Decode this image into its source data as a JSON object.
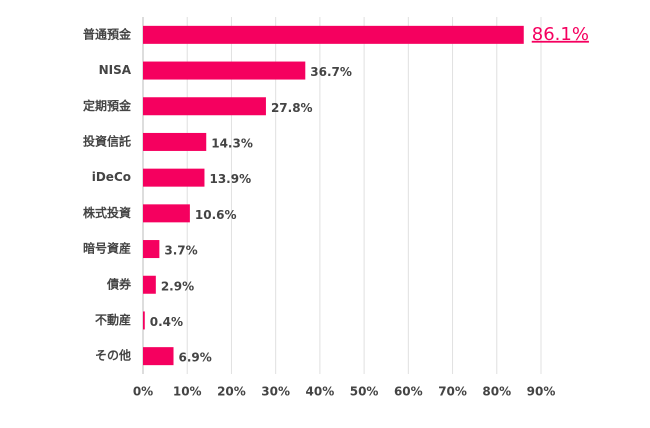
{
  "chart_data": {
    "type": "bar",
    "orientation": "horizontal",
    "categories": [
      "普通預金",
      "NISA",
      "定期預金",
      "投資信託",
      "iDeCo",
      "株式投資",
      "暗号資産",
      "債券",
      "不動産",
      "その他"
    ],
    "values": [
      86.1,
      36.7,
      27.8,
      14.3,
      13.9,
      10.6,
      3.7,
      2.9,
      0.4,
      6.9
    ],
    "value_labels": [
      "86.1%",
      "36.7%",
      "27.8%",
      "14.3%",
      "13.9%",
      "10.6%",
      "3.7%",
      "2.9%",
      "0.4%",
      "6.9%"
    ],
    "color": "#f5005f",
    "xlim": [
      0,
      90
    ],
    "xticks": [
      {
        "value": 0,
        "label": "0%"
      },
      {
        "value": 10,
        "label": "10%"
      },
      {
        "value": 20,
        "label": "20%"
      },
      {
        "value": 30,
        "label": "30%"
      },
      {
        "value": 40,
        "label": "40%"
      },
      {
        "value": 50,
        "label": "50%"
      },
      {
        "value": 60,
        "label": "60%"
      },
      {
        "value": 70,
        "label": "70%"
      },
      {
        "value": 80,
        "label": "80%"
      },
      {
        "value": 90,
        "label": "90%"
      }
    ],
    "grid": true
  }
}
